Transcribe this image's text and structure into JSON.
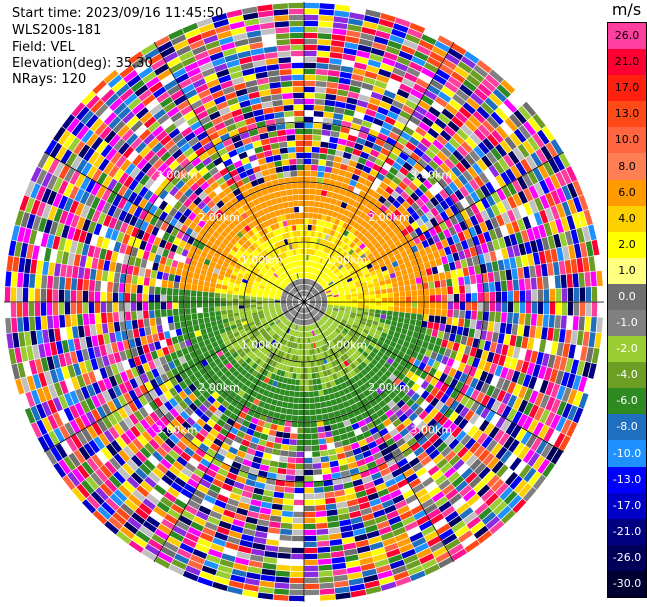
{
  "header": {
    "start_time": "Start time: 2023/09/16 11:45:50",
    "instrument": "WLS200s-181",
    "field": "Field: VEL",
    "elevation": "Elevation(deg): 35.30",
    "nrays": "NRays: 120"
  },
  "colorbar": {
    "unit": "m/s",
    "levels": [
      {
        "label": "26.0",
        "color": "#ff3fa0"
      },
      {
        "label": "21.0",
        "color": "#ff0033"
      },
      {
        "label": "17.0",
        "color": "#ff2010"
      },
      {
        "label": "13.0",
        "color": "#ff4a18"
      },
      {
        "label": "10.0",
        "color": "#ff6640"
      },
      {
        "label": "8.0",
        "color": "#ff7f55"
      },
      {
        "label": "6.0",
        "color": "#ff9a00"
      },
      {
        "label": "4.0",
        "color": "#ffd000"
      },
      {
        "label": "2.0",
        "color": "#ffff00"
      },
      {
        "label": "1.0",
        "color": "#ffff80"
      },
      {
        "label": "0.0",
        "color": "#6f6f6f"
      },
      {
        "label": "-1.0",
        "color": "#808080"
      },
      {
        "label": "-2.0",
        "color": "#9acd32"
      },
      {
        "label": "-4.0",
        "color": "#6b9e23"
      },
      {
        "label": "-6.0",
        "color": "#2e8b22"
      },
      {
        "label": "-8.0",
        "color": "#1e6fc0"
      },
      {
        "label": "-10.0",
        "color": "#1e90ff"
      },
      {
        "label": "-13.0",
        "color": "#0000ff"
      },
      {
        "label": "-17.0",
        "color": "#0000c8"
      },
      {
        "label": "-21.0",
        "color": "#000080"
      },
      {
        "label": "-26.0",
        "color": "#00005a"
      },
      {
        "label": "-30.0",
        "color": "#000030"
      }
    ]
  },
  "range_rings": {
    "labels": [
      "1.00km",
      "2.00km",
      "3.00km"
    ]
  }
}
